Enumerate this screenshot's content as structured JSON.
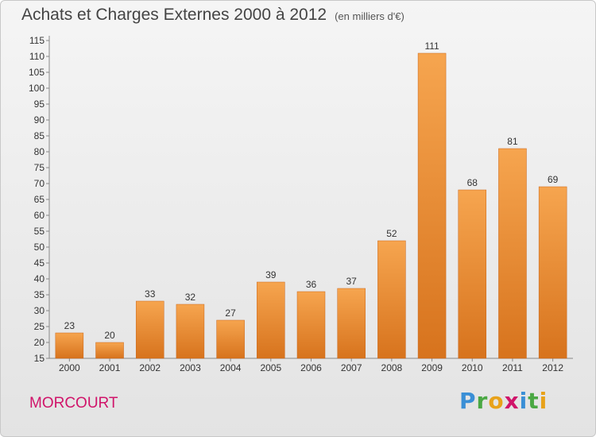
{
  "header": {
    "title": "Achats et Charges Externes 2000 à 2012",
    "subtitle": "(en milliers d'€)"
  },
  "footer": {
    "commune": "MORCOURT",
    "logo_letters": [
      {
        "char": "P",
        "color": "#3a8fd6"
      },
      {
        "char": "r",
        "color": "#4aa843"
      },
      {
        "char": "o",
        "color": "#e8a21a"
      },
      {
        "char": "x",
        "color": "#d0146a"
      },
      {
        "char": "i",
        "color": "#3a8fd6"
      },
      {
        "char": "t",
        "color": "#4aa843"
      },
      {
        "char": "i",
        "color": "#e8a21a"
      }
    ]
  },
  "chart_data": {
    "type": "bar",
    "title": "Achats et Charges Externes 2000 à 2012",
    "subtitle": "(en milliers d'€)",
    "categories": [
      "2000",
      "2001",
      "2002",
      "2003",
      "2004",
      "2005",
      "2006",
      "2007",
      "2008",
      "2009",
      "2010",
      "2011",
      "2012"
    ],
    "values": [
      23,
      20,
      33,
      32,
      27,
      39,
      36,
      37,
      52,
      111,
      68,
      81,
      69
    ],
    "ylim": [
      15,
      115
    ],
    "yticks": [
      15,
      20,
      25,
      30,
      35,
      40,
      45,
      50,
      55,
      60,
      65,
      70,
      75,
      80,
      85,
      90,
      95,
      100,
      105,
      110,
      115
    ],
    "grid": false,
    "bar_color_top": "#f6a54f",
    "bar_color_bottom": "#d7731d"
  }
}
